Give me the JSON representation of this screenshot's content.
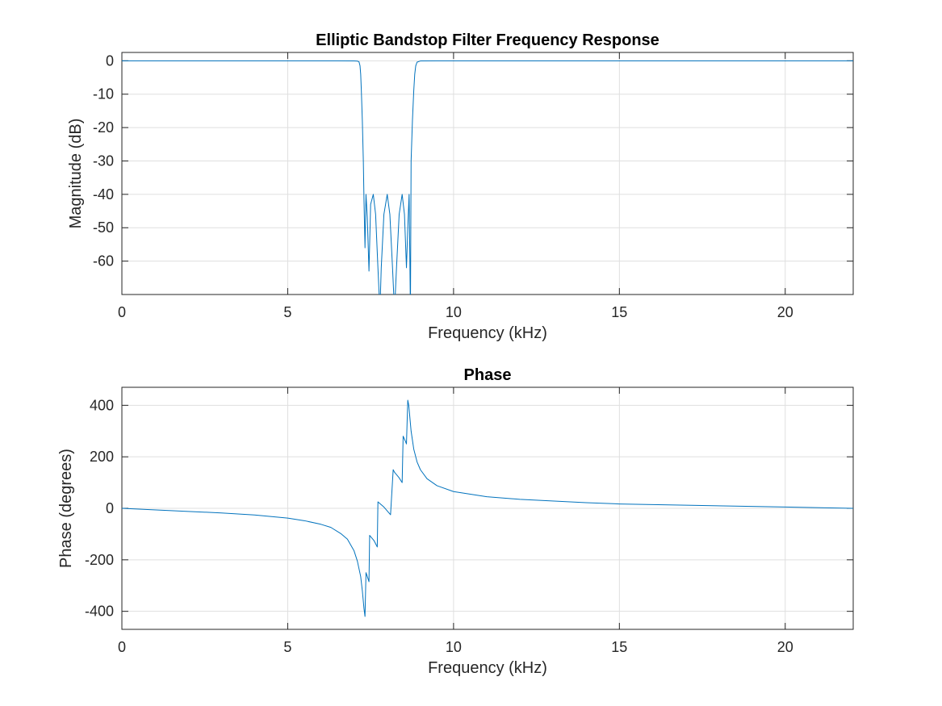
{
  "figure": {
    "colors": {
      "series": "#0072BD",
      "grid": "#dfdfdf",
      "axes": "#262626",
      "background": "#ffffff"
    }
  },
  "chart_data": [
    {
      "type": "line",
      "title": "Elliptic Bandstop Filter Frequency Response",
      "xlabel": "Frequency (kHz)",
      "ylabel": "Magnitude (dB)",
      "xlim": [
        0,
        22.05
      ],
      "ylim": [
        -70,
        2.5
      ],
      "xticks": [
        0,
        5,
        10,
        15,
        20
      ],
      "yticks": [
        0,
        -10,
        -20,
        -30,
        -40,
        -50,
        -60
      ],
      "xtick_labels": [
        "0",
        "5",
        "10",
        "15",
        "20"
      ],
      "ytick_labels": [
        "0",
        "-10",
        "-20",
        "-30",
        "-40",
        "-50",
        "-60"
      ],
      "grid": true,
      "series": [
        {
          "color": "#0072BD",
          "x": [
            0,
            5,
            6.5,
            7.0,
            7.1,
            7.15,
            7.18,
            7.2,
            7.22,
            7.25,
            7.28,
            7.3,
            7.33,
            7.36,
            7.4,
            7.45,
            7.5,
            7.58,
            7.65,
            7.72,
            7.78,
            7.82,
            7.9,
            8.0,
            8.08,
            8.16,
            8.22,
            8.28,
            8.36,
            8.45,
            8.52,
            8.58,
            8.62,
            8.66,
            8.7,
            8.72,
            8.76,
            8.8,
            8.83,
            8.86,
            8.9,
            9.0,
            9.5,
            10,
            15,
            22.05
          ],
          "y": [
            0,
            0,
            -0.02,
            -0.05,
            -0.1,
            -0.3,
            -1.5,
            -4,
            -9,
            -18,
            -30,
            -42,
            -56,
            -40,
            -47,
            -63,
            -43,
            -40,
            -46,
            -62,
            -75,
            -62,
            -46,
            -40,
            -46,
            -62,
            -75,
            -62,
            -46,
            -40,
            -46,
            -62,
            -50,
            -40,
            -75,
            -30,
            -18,
            -9,
            -4,
            -1.5,
            -0.4,
            -0.05,
            -0.02,
            0,
            0,
            0
          ]
        }
      ]
    },
    {
      "type": "line",
      "title": "Phase",
      "xlabel": "Frequency (kHz)",
      "ylabel": "Phase (degrees)",
      "xlim": [
        0,
        22.05
      ],
      "ylim": [
        -470,
        470
      ],
      "xticks": [
        0,
        5,
        10,
        15,
        20
      ],
      "yticks": [
        400,
        200,
        0,
        -200,
        -400
      ],
      "xtick_labels": [
        "0",
        "5",
        "10",
        "15",
        "20"
      ],
      "ytick_labels": [
        "400",
        "200",
        "0",
        "-200",
        "-400"
      ],
      "grid": true,
      "series": [
        {
          "color": "#0072BD",
          "x": [
            0,
            2,
            3,
            4,
            5,
            5.5,
            6,
            6.3,
            6.6,
            6.8,
            7.0,
            7.1,
            7.2,
            7.25,
            7.3,
            7.33,
            7.36,
            7.4,
            7.45,
            7.47,
            7.6,
            7.7,
            7.72,
            7.9,
            8.0,
            8.1,
            8.18,
            8.22,
            8.35,
            8.45,
            8.48,
            8.55,
            8.58,
            8.62,
            8.65,
            8.72,
            8.8,
            8.9,
            9.0,
            9.2,
            9.5,
            10,
            11,
            12,
            14,
            15,
            17,
            20,
            22.05
          ],
          "y": [
            0,
            -12,
            -18,
            -26,
            -38,
            -48,
            -62,
            -74,
            -98,
            -120,
            -165,
            -205,
            -265,
            -320,
            -390,
            -420,
            -250,
            -265,
            -285,
            -105,
            -125,
            -150,
            25,
            5,
            -10,
            -25,
            150,
            140,
            120,
            100,
            280,
            260,
            250,
            420,
            400,
            300,
            230,
            180,
            150,
            115,
            88,
            65,
            45,
            35,
            22,
            17,
            12,
            5,
            0
          ]
        }
      ]
    }
  ]
}
